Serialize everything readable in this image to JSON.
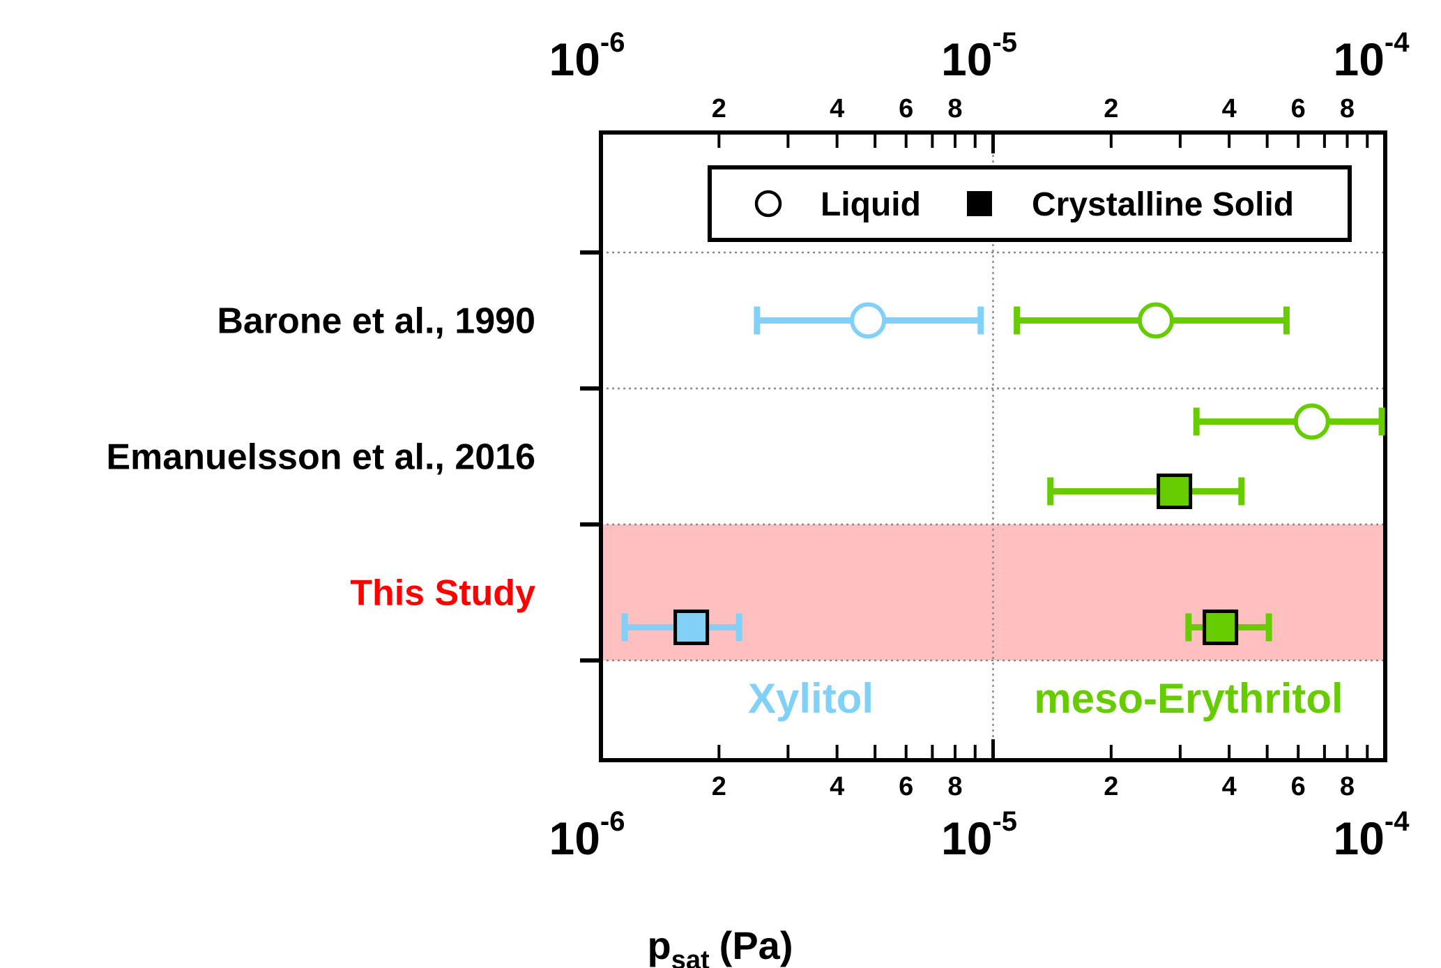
{
  "chart_data": {
    "type": "scatter",
    "scale": "log",
    "xlim": [
      1e-06,
      0.0001
    ],
    "xlabel_main": "p",
    "xlabel_sub": "sat",
    "xlabel_unit": "(Pa)",
    "decade_ticks": [
      {
        "value": 1e-06,
        "base": "10",
        "exp": "-6"
      },
      {
        "value": 1e-05,
        "base": "10",
        "exp": "-5"
      },
      {
        "value": 0.0001,
        "base": "10",
        "exp": "-4"
      }
    ],
    "minor_labels": [
      {
        "value": 2e-06,
        "label": "2"
      },
      {
        "value": 4e-06,
        "label": "4"
      },
      {
        "value": 6e-06,
        "label": "6"
      },
      {
        "value": 8e-06,
        "label": "8"
      },
      {
        "value": 2e-05,
        "label": "2"
      },
      {
        "value": 4e-05,
        "label": "4"
      },
      {
        "value": 6e-05,
        "label": "6"
      },
      {
        "value": 8e-05,
        "label": "8"
      }
    ],
    "categories": [
      {
        "label": "Barone et al., 1990",
        "color": "#000000"
      },
      {
        "label": "Emanuelsson et al., 2016",
        "color": "#000000"
      },
      {
        "label": "This Study",
        "color": "#ff0000",
        "highlight": "#ffbfbf"
      }
    ],
    "legend": {
      "position": "top",
      "items": [
        {
          "label": "Liquid",
          "marker": "open-circle"
        },
        {
          "label": "Crystalline Solid",
          "marker": "filled-square"
        }
      ]
    },
    "compound_labels": [
      {
        "label": "Xylitol",
        "color": "#80d0f7"
      },
      {
        "label": "meso-Erythritol",
        "color": "#66cc00"
      }
    ],
    "points": [
      {
        "category": 0,
        "offset": 0,
        "compound": "Xylitol",
        "phase": "Liquid",
        "x": 4.8e-06,
        "xmin": 2.5e-06,
        "xmax": 9.3e-06
      },
      {
        "category": 0,
        "offset": 0,
        "compound": "meso-Erythritol",
        "phase": "Liquid",
        "x": 2.6e-05,
        "xmin": 1.15e-05,
        "xmax": 5.6e-05
      },
      {
        "category": 1,
        "offset": -1,
        "compound": "meso-Erythritol",
        "phase": "Liquid",
        "x": 6.5e-05,
        "xmin": 3.3e-05,
        "xmax": 9.8e-05
      },
      {
        "category": 1,
        "offset": 1,
        "compound": "meso-Erythritol",
        "phase": "Crystalline Solid",
        "x": 2.9e-05,
        "xmin": 1.4e-05,
        "xmax": 4.3e-05
      },
      {
        "category": 2,
        "offset": 1,
        "compound": "Xylitol",
        "phase": "Crystalline Solid",
        "x": 1.7e-06,
        "xmin": 1.15e-06,
        "xmax": 2.25e-06
      },
      {
        "category": 2,
        "offset": 1,
        "compound": "meso-Erythritol",
        "phase": "Crystalline Solid",
        "x": 3.8e-05,
        "xmin": 3.15e-05,
        "xmax": 5.05e-05
      }
    ],
    "grid": "dotted"
  }
}
